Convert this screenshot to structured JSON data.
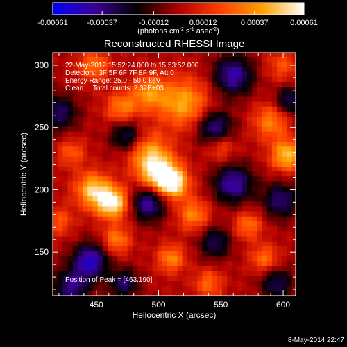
{
  "chart_data": {
    "type": "heatmap",
    "title": "Reconstructed RHESSI Image",
    "xlabel": "Heliocentric X (arcsec)",
    "ylabel": "Heliocentric Y (arcsec)",
    "xlim": [
      415,
      610
    ],
    "ylim": [
      115,
      310
    ],
    "x_ticks": [
      450,
      500,
      550,
      600
    ],
    "y_ticks": [
      150,
      200,
      250,
      300
    ],
    "colorbar": {
      "min": -0.00061,
      "max": 0.00061,
      "tick_values": [
        -0.00061,
        -0.00037,
        -0.00012,
        0.00012,
        0.00037,
        0.00061
      ],
      "tick_labels": [
        "-0.00061",
        "-0.00037",
        "-0.00012",
        "0.00012",
        "0.00037",
        "0.00061"
      ],
      "units_prefix": "(photons cm",
      "units_sup1": "-2",
      "units_mid": " s",
      "units_sup2": "-1",
      "units_mid2": " asec",
      "units_sup3": "-2",
      "units_suffix": ")"
    },
    "annotations": {
      "time_range": "22-May-2012 15:52:24.000 to 15:53:52.000",
      "detectors": "Detectors: 3F 5F 6F 7F 8F 9F, Att 0",
      "energy": "Energy Range: 25.0 - 50.0 keV",
      "method": "Clean     Total counts: 2.32E+03",
      "peak": "Position of Peak = [463,190]"
    },
    "peak": {
      "x": 463,
      "y": 190
    },
    "grid": false,
    "colormap": [
      "#0000ff",
      "#3b0096",
      "#000000",
      "#b00000",
      "#ff4000",
      "#ffa000",
      "#ffffff"
    ],
    "pixel_size_arcsec": 4,
    "blobs": [
      {
        "x": 463,
        "y": 190,
        "amp": 0.00061,
        "r": 9
      },
      {
        "x": 447,
        "y": 200,
        "amp": 0.00048,
        "r": 10
      },
      {
        "x": 500,
        "y": 214,
        "amp": 0.00058,
        "r": 11
      },
      {
        "x": 512,
        "y": 205,
        "amp": 0.0005,
        "r": 9
      },
      {
        "x": 490,
        "y": 232,
        "amp": 0.00034,
        "r": 12
      },
      {
        "x": 520,
        "y": 270,
        "amp": 0.00042,
        "r": 14
      },
      {
        "x": 492,
        "y": 278,
        "amp": 0.00035,
        "r": 10
      },
      {
        "x": 470,
        "y": 266,
        "amp": 0.00032,
        "r": 9
      },
      {
        "x": 603,
        "y": 228,
        "amp": 0.00048,
        "r": 9
      },
      {
        "x": 590,
        "y": 255,
        "amp": 0.00033,
        "r": 10
      },
      {
        "x": 528,
        "y": 180,
        "amp": 0.00034,
        "r": 9
      },
      {
        "x": 510,
        "y": 145,
        "amp": 0.00034,
        "r": 8
      },
      {
        "x": 466,
        "y": 160,
        "amp": 0.00033,
        "r": 8
      },
      {
        "x": 448,
        "y": 300,
        "amp": 0.0003,
        "r": 9
      },
      {
        "x": 572,
        "y": 172,
        "amp": 0.0003,
        "r": 8
      },
      {
        "x": 585,
        "y": 145,
        "amp": 0.00029,
        "r": 8
      },
      {
        "x": 540,
        "y": 125,
        "amp": 0.00028,
        "r": 8
      },
      {
        "x": 420,
        "y": 175,
        "amp": 0.00024,
        "r": 8
      },
      {
        "x": 600,
        "y": 300,
        "amp": 0.00022,
        "r": 9
      },
      {
        "x": 550,
        "y": 235,
        "amp": 0.00024,
        "r": 8
      },
      {
        "x": 430,
        "y": 230,
        "amp": 0.00024,
        "r": 8
      },
      {
        "x": 560,
        "y": 292,
        "amp": -0.00045,
        "r": 11
      },
      {
        "x": 545,
        "y": 250,
        "amp": -0.00042,
        "r": 10
      },
      {
        "x": 475,
        "y": 243,
        "amp": -0.00038,
        "r": 9
      },
      {
        "x": 492,
        "y": 190,
        "amp": -0.00045,
        "r": 10
      },
      {
        "x": 445,
        "y": 143,
        "amp": -0.0005,
        "r": 10
      },
      {
        "x": 560,
        "y": 205,
        "amp": -0.00044,
        "r": 11
      },
      {
        "x": 420,
        "y": 262,
        "amp": -0.00034,
        "r": 10
      },
      {
        "x": 545,
        "y": 158,
        "amp": -0.00032,
        "r": 9
      },
      {
        "x": 598,
        "y": 192,
        "amp": -0.00036,
        "r": 10
      },
      {
        "x": 595,
        "y": 125,
        "amp": -0.00032,
        "r": 9
      },
      {
        "x": 430,
        "y": 122,
        "amp": -0.00038,
        "r": 10
      },
      {
        "x": 472,
        "y": 125,
        "amp": -0.00034,
        "r": 8
      },
      {
        "x": 605,
        "y": 272,
        "amp": -0.00034,
        "r": 8
      }
    ]
  },
  "footer": {
    "date": "8-May-2014 22:47"
  }
}
